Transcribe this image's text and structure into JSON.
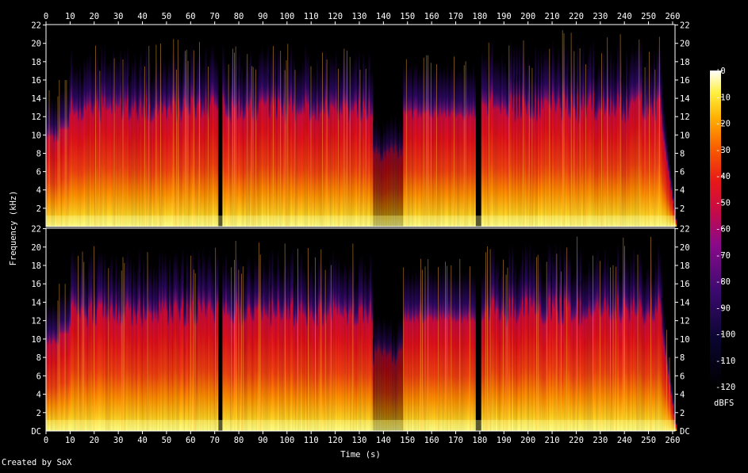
{
  "chart_data": {
    "type": "heatmap",
    "subtype": "spectrogram",
    "channels": 2,
    "xlabel": "Time (s)",
    "ylabel": "Frequency (kHz)",
    "x_ticks": [
      0,
      10,
      20,
      30,
      40,
      50,
      60,
      70,
      80,
      90,
      100,
      110,
      120,
      130,
      140,
      150,
      160,
      170,
      180,
      190,
      200,
      210,
      220,
      230,
      240,
      250,
      260
    ],
    "xlim": [
      0,
      261
    ],
    "y_ticks": [
      2,
      4,
      6,
      8,
      10,
      12,
      14,
      16,
      18,
      20,
      22
    ],
    "y_bottom_label": "DC",
    "ylim_khz": [
      0,
      22.05
    ],
    "colorbar": {
      "label": "dBFS",
      "ticks": [
        "+0",
        "-10",
        "-20",
        "-30",
        "-40",
        "-50",
        "-60",
        "-70",
        "-80",
        "-90",
        "-100",
        "-110",
        "-120"
      ],
      "range": [
        -120,
        0
      ]
    },
    "gaps_s": [
      [
        71,
        73
      ],
      [
        178,
        180
      ]
    ],
    "quiet_section_s": [
      135,
      148
    ],
    "lowpass_cutoff_khz": 16,
    "credit": "Created by SoX"
  }
}
